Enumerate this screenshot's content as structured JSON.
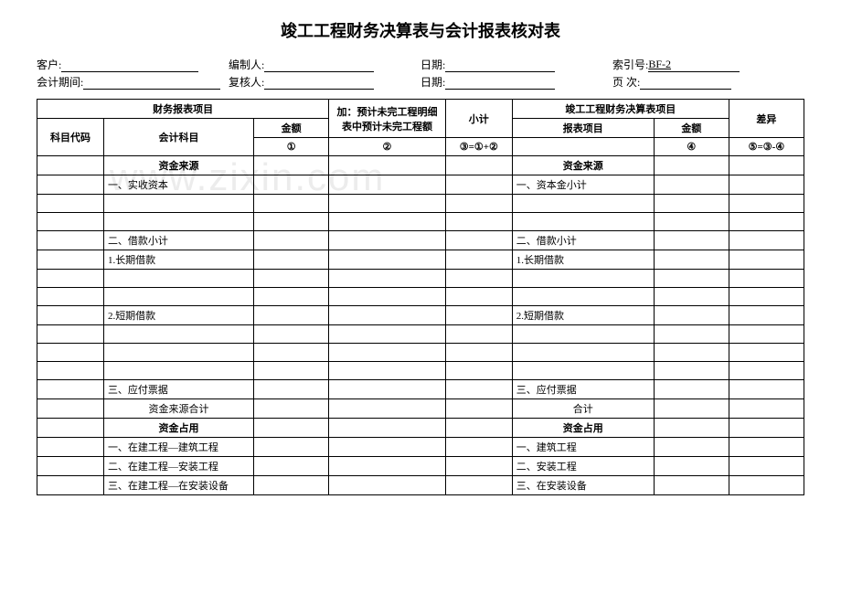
{
  "title": "竣工工程财务决算表与会计报表核对表",
  "fields": {
    "row1": {
      "client_label": "客户:",
      "preparer_label": "编制人:",
      "date1_label": "日期:",
      "index_label": "索引号:",
      "index_value": "BF-2"
    },
    "row2": {
      "period_label": "会计期间:",
      "reviewer_label": "复核人:",
      "date2_label": "日期:",
      "page_label": "页 次:"
    }
  },
  "headers": {
    "financial_report": "财务报表项目",
    "code": "科目代码",
    "subject": "会计科目",
    "amount": "金额",
    "addition": "加：预计未完工程明细表中预计未完工程额",
    "subtotal": "小计",
    "completion_report": "竣工工程财务决算表项目",
    "report_item": "报表项目",
    "amount2": "金额",
    "difference": "差异",
    "num1": "①",
    "num2": "②",
    "num3": "③=①+②",
    "num4": "④",
    "num5": "⑤=③-④"
  },
  "rows": [
    {
      "subject": "资金来源",
      "subject_bold": true,
      "subject_center": true,
      "item": "资金来源",
      "item_bold": true,
      "item_center": true
    },
    {
      "subject": "一、实收资本",
      "item": "一、资本金小计"
    },
    {
      "subject": "",
      "item": ""
    },
    {
      "subject": "",
      "item": ""
    },
    {
      "subject": "二、借款小计",
      "item": "二、借款小计"
    },
    {
      "subject": "1.长期借款",
      "item": "1.长期借款"
    },
    {
      "subject": "",
      "item": ""
    },
    {
      "subject": "",
      "item": ""
    },
    {
      "subject": "2.短期借款",
      "item": "2.短期借款"
    },
    {
      "subject": "",
      "item": ""
    },
    {
      "subject": "",
      "item": ""
    },
    {
      "subject": "",
      "item": ""
    },
    {
      "subject": "三、应付票据",
      "item": "三、应付票据"
    },
    {
      "subject": "资金来源合计",
      "subject_center": true,
      "item": "合计",
      "item_center": true
    },
    {
      "subject": "资金占用",
      "subject_bold": true,
      "subject_center": true,
      "item": "资金占用",
      "item_bold": true,
      "item_center": true
    },
    {
      "subject": "一、在建工程—建筑工程",
      "item": "一、建筑工程"
    },
    {
      "subject": "二、在建工程—安装工程",
      "item": "二、安装工程"
    },
    {
      "subject": "三、在建工程—在安装设备",
      "item": "三、在安装设备"
    }
  ],
  "watermark": "www.zixin.com"
}
